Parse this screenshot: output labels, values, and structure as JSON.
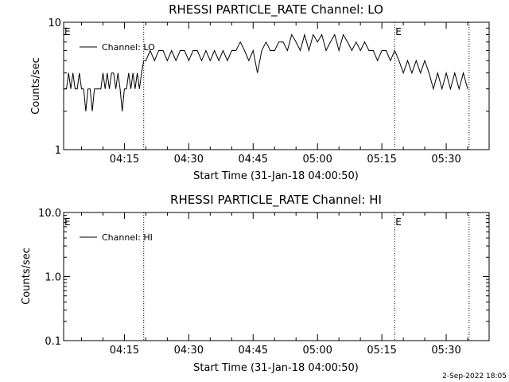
{
  "timestamp": "2-Sep-2022 18:05",
  "chart_data": [
    {
      "type": "line",
      "title": "RHESSI PARTICLE_RATE Channel: LO",
      "xlabel": "Start Time (31-Jan-18 04:00:50)",
      "ylabel": "Counts/sec",
      "y_scale": "log",
      "ylim": [
        1,
        10
      ],
      "y_ticks": [
        {
          "value": 1,
          "label": "1"
        },
        {
          "value": 10,
          "label": "10"
        }
      ],
      "xlim": [
        "04:00:50",
        "05:40:00"
      ],
      "x_ticks": [
        "04:15",
        "04:30",
        "04:45",
        "05:00",
        "05:15",
        "05:30"
      ],
      "grid": false,
      "legend_position": "top-left",
      "markers": [
        {
          "time": "04:00:50",
          "label": "E",
          "line": false
        },
        {
          "time": "04:19:30",
          "label": "",
          "line": true
        },
        {
          "time": "05:18:00",
          "label": "E",
          "line": true
        },
        {
          "time": "05:35:20",
          "label": "",
          "line": true
        }
      ],
      "series": [
        {
          "name": "Channel: LO",
          "color": "#000000",
          "x": [
            "04:00:50",
            "04:01:30",
            "04:02:00",
            "04:02:30",
            "04:03:00",
            "04:03:30",
            "04:04:00",
            "04:04:30",
            "04:05:00",
            "04:05:30",
            "04:06:00",
            "04:06:30",
            "04:07:00",
            "04:07:30",
            "04:08:00",
            "04:08:30",
            "04:09:00",
            "04:09:30",
            "04:10:00",
            "04:10:30",
            "04:11:00",
            "04:11:30",
            "04:12:00",
            "04:12:30",
            "04:13:00",
            "04:13:30",
            "04:14:00",
            "04:14:30",
            "04:15:00",
            "04:15:30",
            "04:16:00",
            "04:16:30",
            "04:17:00",
            "04:17:30",
            "04:18:00",
            "04:18:30",
            "04:19:00",
            "04:19:30",
            "04:20:00",
            "04:21:00",
            "04:22:00",
            "04:23:00",
            "04:24:00",
            "04:25:00",
            "04:26:00",
            "04:27:00",
            "04:28:00",
            "04:29:00",
            "04:30:00",
            "04:31:00",
            "04:32:00",
            "04:33:00",
            "04:34:00",
            "04:35:00",
            "04:36:00",
            "04:37:00",
            "04:38:00",
            "04:39:00",
            "04:40:00",
            "04:41:00",
            "04:42:00",
            "04:43:00",
            "04:44:00",
            "04:45:00",
            "04:46:00",
            "04:47:00",
            "04:48:00",
            "04:49:00",
            "04:50:00",
            "04:51:00",
            "04:52:00",
            "04:53:00",
            "04:54:00",
            "04:55:00",
            "04:56:00",
            "04:57:00",
            "04:58:00",
            "04:59:00",
            "05:00:00",
            "05:01:00",
            "05:02:00",
            "05:03:00",
            "05:04:00",
            "05:05:00",
            "05:06:00",
            "05:07:00",
            "05:08:00",
            "05:09:00",
            "05:10:00",
            "05:11:00",
            "05:12:00",
            "05:13:00",
            "05:14:00",
            "05:15:00",
            "05:16:00",
            "05:17:00",
            "05:18:00",
            "05:19:00",
            "05:20:00",
            "05:21:00",
            "05:22:00",
            "05:23:00",
            "05:24:00",
            "05:25:00",
            "05:26:00",
            "05:27:00",
            "05:28:00",
            "05:29:00",
            "05:30:00",
            "05:31:00",
            "05:32:00",
            "05:33:00",
            "05:34:00",
            "05:35:00"
          ],
          "values": [
            3,
            3,
            4,
            3,
            4,
            3,
            3,
            4,
            3,
            3,
            2,
            3,
            3,
            2,
            3,
            3,
            3,
            3,
            4,
            3,
            4,
            3,
            4,
            4,
            3,
            4,
            3,
            2,
            3,
            3,
            4,
            3,
            4,
            3,
            4,
            3,
            4,
            5,
            5,
            6,
            5,
            6,
            6,
            5,
            6,
            5,
            6,
            6,
            5,
            6,
            6,
            5,
            6,
            5,
            6,
            5,
            6,
            5,
            6,
            6,
            7,
            6,
            5,
            6,
            4,
            6,
            7,
            6,
            6,
            7,
            7,
            6,
            8,
            7,
            6,
            8,
            6,
            8,
            7,
            8,
            6,
            7,
            8,
            6,
            8,
            7,
            6,
            7,
            6,
            7,
            6,
            6,
            5,
            6,
            6,
            5,
            6,
            5,
            4,
            5,
            4,
            5,
            4,
            5,
            4,
            3,
            4,
            3,
            4,
            3,
            4,
            3,
            4,
            3
          ]
        }
      ]
    },
    {
      "type": "line",
      "title": "RHESSI PARTICLE_RATE Channel: HI",
      "xlabel": "Start Time (31-Jan-18 04:00:50)",
      "ylabel": "Counts/sec",
      "y_scale": "log",
      "ylim": [
        0.1,
        10
      ],
      "y_ticks": [
        {
          "value": 0.1,
          "label": "0.1"
        },
        {
          "value": 1,
          "label": "1.0"
        },
        {
          "value": 10,
          "label": "10.0"
        }
      ],
      "xlim": [
        "04:00:50",
        "05:40:00"
      ],
      "x_ticks": [
        "04:15",
        "04:30",
        "04:45",
        "05:00",
        "05:15",
        "05:30"
      ],
      "grid": false,
      "legend_position": "top-left",
      "markers": [
        {
          "time": "04:00:50",
          "label": "E",
          "line": false
        },
        {
          "time": "04:19:30",
          "label": "",
          "line": true
        },
        {
          "time": "05:18:00",
          "label": "E",
          "line": true
        },
        {
          "time": "05:35:20",
          "label": "",
          "line": true
        }
      ],
      "series": [
        {
          "name": "Channel: HI",
          "color": "#000000",
          "x": [],
          "values": []
        }
      ]
    }
  ]
}
